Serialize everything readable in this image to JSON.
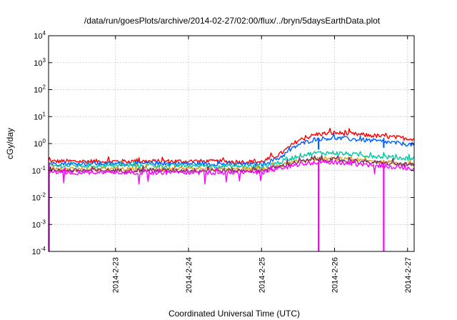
{
  "chart_data": {
    "type": "line",
    "title": "/data/run/goesPlots/archive/2014-02-27/02:00/flux/../bryn/5daysEarthData.plot",
    "xlabel": "Coordinated Universal Time (UTC)",
    "ylabel": "cGy/day",
    "yscale": "log",
    "ylim": [
      0.0001,
      10000
    ],
    "xlim": [
      "2014-02-22 02:00",
      "2014-02-27 02:10"
    ],
    "grid": true,
    "legend": "none",
    "x_ticks": [
      {
        "label": "2014-2-23",
        "date": "2014-02-23"
      },
      {
        "label": "2014-2-24",
        "date": "2014-02-24"
      },
      {
        "label": "2014-2-25",
        "date": "2014-02-25"
      },
      {
        "label": "2014-2-26",
        "date": "2014-02-26"
      },
      {
        "label": "2014-2-27",
        "date": "2014-02-27"
      }
    ],
    "y_ticks": [
      {
        "base": "10",
        "exp": "4",
        "value": 10000
      },
      {
        "base": "10",
        "exp": "3",
        "value": 1000
      },
      {
        "base": "10",
        "exp": "2",
        "value": 100
      },
      {
        "base": "10",
        "exp": "1",
        "value": 10
      },
      {
        "base": "10",
        "exp": "0",
        "value": 1
      },
      {
        "base": "10",
        "exp": "-1",
        "value": 0.1
      },
      {
        "base": "10",
        "exp": "-2",
        "value": 0.01
      },
      {
        "base": "10",
        "exp": "-3",
        "value": 0.001
      },
      {
        "base": "10",
        "exp": "-4",
        "value": 0.0001
      }
    ],
    "series": [
      {
        "color": "#ff0000",
        "points": [
          [
            "2014-02-22 02:00",
            0.22
          ],
          [
            "2014-02-23 00:00",
            0.22
          ],
          [
            "2014-02-24 00:00",
            0.22
          ],
          [
            "2014-02-25 00:00",
            0.21
          ],
          [
            "2014-02-25 06:00",
            0.4
          ],
          [
            "2014-02-25 12:00",
            1.3
          ],
          [
            "2014-02-25 18:00",
            2.2
          ],
          [
            "2014-02-26 00:00",
            2.5
          ],
          [
            "2014-02-26 12:00",
            2.0
          ],
          [
            "2014-02-27 02:00",
            1.5
          ]
        ],
        "dropouts": []
      },
      {
        "color": "#0060ff",
        "points": [
          [
            "2014-02-22 02:00",
            0.18
          ],
          [
            "2014-02-23 00:00",
            0.18
          ],
          [
            "2014-02-24 00:00",
            0.18
          ],
          [
            "2014-02-25 00:00",
            0.17
          ],
          [
            "2014-02-25 06:00",
            0.3
          ],
          [
            "2014-02-25 12:00",
            0.9
          ],
          [
            "2014-02-25 18:00",
            1.5
          ],
          [
            "2014-02-26 00:00",
            1.6
          ],
          [
            "2014-02-26 12:00",
            1.3
          ],
          [
            "2014-02-27 02:00",
            0.9
          ]
        ],
        "dropouts": [
          [
            "2014-02-25 18:45",
            0.6
          ],
          [
            "2014-02-26 16:10",
            0.7
          ]
        ]
      },
      {
        "color": "#00c8a0",
        "points": [
          [
            "2014-02-22 02:00",
            0.15
          ],
          [
            "2014-02-23 00:00",
            0.15
          ],
          [
            "2014-02-24 00:00",
            0.15
          ],
          [
            "2014-02-25 00:00",
            0.14
          ],
          [
            "2014-02-25 06:00",
            0.2
          ],
          [
            "2014-02-25 12:00",
            0.35
          ],
          [
            "2014-02-25 18:00",
            0.45
          ],
          [
            "2014-02-26 00:00",
            0.45
          ],
          [
            "2014-02-26 12:00",
            0.35
          ],
          [
            "2014-02-27 02:00",
            0.27
          ]
        ],
        "dropouts": []
      },
      {
        "color": "#d4a020",
        "points": [
          [
            "2014-02-22 02:00",
            0.11
          ],
          [
            "2014-02-23 00:00",
            0.11
          ],
          [
            "2014-02-24 00:00",
            0.11
          ],
          [
            "2014-02-25 00:00",
            0.11
          ],
          [
            "2014-02-25 06:00",
            0.15
          ],
          [
            "2014-02-25 12:00",
            0.22
          ],
          [
            "2014-02-25 18:00",
            0.27
          ],
          [
            "2014-02-26 00:00",
            0.27
          ],
          [
            "2014-02-26 12:00",
            0.22
          ],
          [
            "2014-02-27 02:00",
            0.17
          ]
        ],
        "dropouts": []
      },
      {
        "color": "#7b2b6a",
        "points": [
          [
            "2014-02-22 02:00",
            0.1
          ],
          [
            "2014-02-23 00:00",
            0.1
          ],
          [
            "2014-02-24 00:00",
            0.1
          ],
          [
            "2014-02-25 00:00",
            0.1
          ],
          [
            "2014-02-25 06:00",
            0.14
          ],
          [
            "2014-02-25 12:00",
            0.21
          ],
          [
            "2014-02-25 18:00",
            0.25
          ],
          [
            "2014-02-26 00:00",
            0.25
          ],
          [
            "2014-02-26 12:00",
            0.2
          ],
          [
            "2014-02-27 02:00",
            0.16
          ]
        ],
        "dropouts": []
      },
      {
        "color": "#ff00ff",
        "points": [
          [
            "2014-02-22 02:00",
            0.085
          ],
          [
            "2014-02-23 00:00",
            0.085
          ],
          [
            "2014-02-24 00:00",
            0.085
          ],
          [
            "2014-02-25 00:00",
            0.085
          ],
          [
            "2014-02-25 06:00",
            0.12
          ],
          [
            "2014-02-25 12:00",
            0.17
          ],
          [
            "2014-02-25 18:00",
            0.2
          ],
          [
            "2014-02-26 00:00",
            0.2
          ],
          [
            "2014-02-26 12:00",
            0.16
          ],
          [
            "2014-02-27 02:00",
            0.12
          ]
        ],
        "dropouts": [
          [
            "2014-02-22 02:10",
            0.0001
          ],
          [
            "2014-02-25 18:45",
            0.0001
          ],
          [
            "2014-02-26 16:10",
            0.0001
          ]
        ]
      }
    ]
  }
}
